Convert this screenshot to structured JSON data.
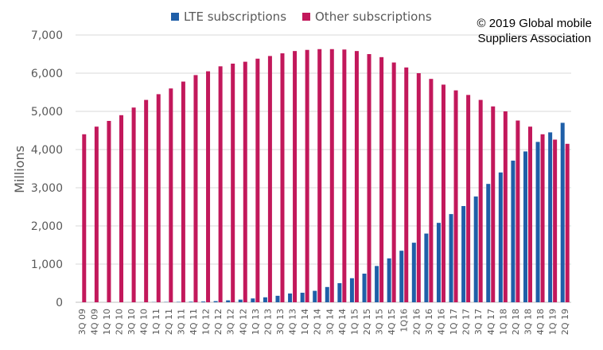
{
  "credit": {
    "line1": "© 2019 Global mobile",
    "line2": "Suppliers Association"
  },
  "chart_data": {
    "type": "bar",
    "title": "",
    "xlabel": "",
    "ylabel": "Millions",
    "ylim": [
      0,
      7000
    ],
    "yticks": [
      0,
      1000,
      2000,
      3000,
      4000,
      5000,
      6000,
      7000
    ],
    "ytick_labels": [
      "0",
      "1,000",
      "2,000",
      "3,000",
      "4,000",
      "5,000",
      "6,000",
      "7,000"
    ],
    "grid": true,
    "legend": "top-center",
    "categories": [
      "3Q 09",
      "4Q 09",
      "1Q 10",
      "2Q 10",
      "3Q 10",
      "4Q 10",
      "1Q 11",
      "2Q 11",
      "3Q 11",
      "4Q 11",
      "1Q 12",
      "2Q 12",
      "3Q 12",
      "4Q 12",
      "1Q 13",
      "2Q 13",
      "3Q 13",
      "4Q 13",
      "1Q 14",
      "2Q 14",
      "3Q 14",
      "4Q 14",
      "1Q 15",
      "2Q 15",
      "3Q 15",
      "4Q 15",
      "1Q16",
      "2Q 16",
      "3Q 16",
      "4Q 16",
      "1Q 17",
      "2Q 17",
      "3Q 17",
      "4Q 17",
      "1Q 18",
      "2Q 18",
      "3Q 18",
      "4Q 18",
      "1Q 19",
      "2Q 19"
    ],
    "series": [
      {
        "name": "LTE subscriptions",
        "color": "#1f5fa8",
        "values": [
          0,
          0,
          0,
          0,
          1,
          2,
          5,
          7,
          10,
          15,
          20,
          30,
          50,
          70,
          100,
          130,
          170,
          230,
          250,
          300,
          400,
          500,
          630,
          750,
          950,
          1150,
          1350,
          1560,
          1800,
          2080,
          2310,
          2520,
          2770,
          3100,
          3400,
          3710,
          3950,
          4200,
          4450,
          4700
        ]
      },
      {
        "name": "Other subscriptions",
        "color": "#c2185b",
        "values": [
          4400,
          4600,
          4750,
          4900,
          5100,
          5300,
          5450,
          5600,
          5780,
          5950,
          6050,
          6180,
          6250,
          6300,
          6380,
          6450,
          6520,
          6580,
          6610,
          6630,
          6630,
          6620,
          6580,
          6500,
          6420,
          6280,
          6150,
          6000,
          5850,
          5700,
          5550,
          5430,
          5300,
          5130,
          5000,
          4760,
          4600,
          4400,
          4260,
          4150
        ]
      }
    ]
  }
}
